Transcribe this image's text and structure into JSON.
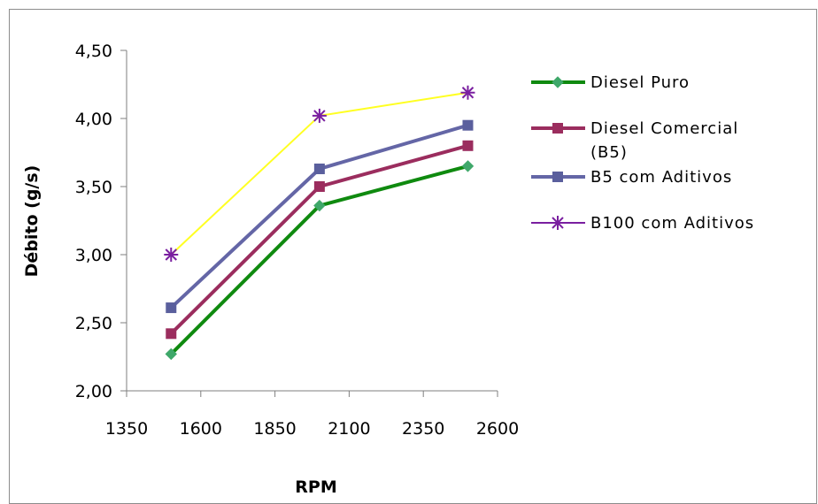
{
  "chart_data": {
    "type": "line",
    "xlabel": "RPM",
    "ylabel": "Débito (g/s)",
    "x_ticks": [
      "1350",
      "1600",
      "1850",
      "2100",
      "2350",
      "2600"
    ],
    "y_ticks": [
      "2,00",
      "2,50",
      "3,00",
      "3,50",
      "4,00",
      "4,50"
    ],
    "xlim": [
      1350,
      2600
    ],
    "ylim": [
      2.0,
      4.5
    ],
    "grid": false,
    "legend_position": "right",
    "x": [
      1500,
      2000,
      2500
    ],
    "series": [
      {
        "name": "Diesel Puro",
        "values": [
          2.27,
          3.36,
          3.65
        ],
        "color": "#0f8a0f",
        "marker_color": "#3fa86a",
        "marker": "diamond"
      },
      {
        "name": "Diesel Comercial (B5)",
        "values": [
          2.42,
          3.5,
          3.8
        ],
        "color": "#9b2d5e",
        "marker_color": "#9b2d5e",
        "marker": "square"
      },
      {
        "name": "B5 com Aditivos",
        "values": [
          2.61,
          3.63,
          3.95
        ],
        "color": "#6466a6",
        "marker_color": "#5a5f9d",
        "marker": "square"
      },
      {
        "name": "B100 com Aditivos",
        "values": [
          3.0,
          4.02,
          4.19
        ],
        "color": "#ffff22",
        "marker_color": "#7a1fa0",
        "marker": "star"
      }
    ]
  }
}
